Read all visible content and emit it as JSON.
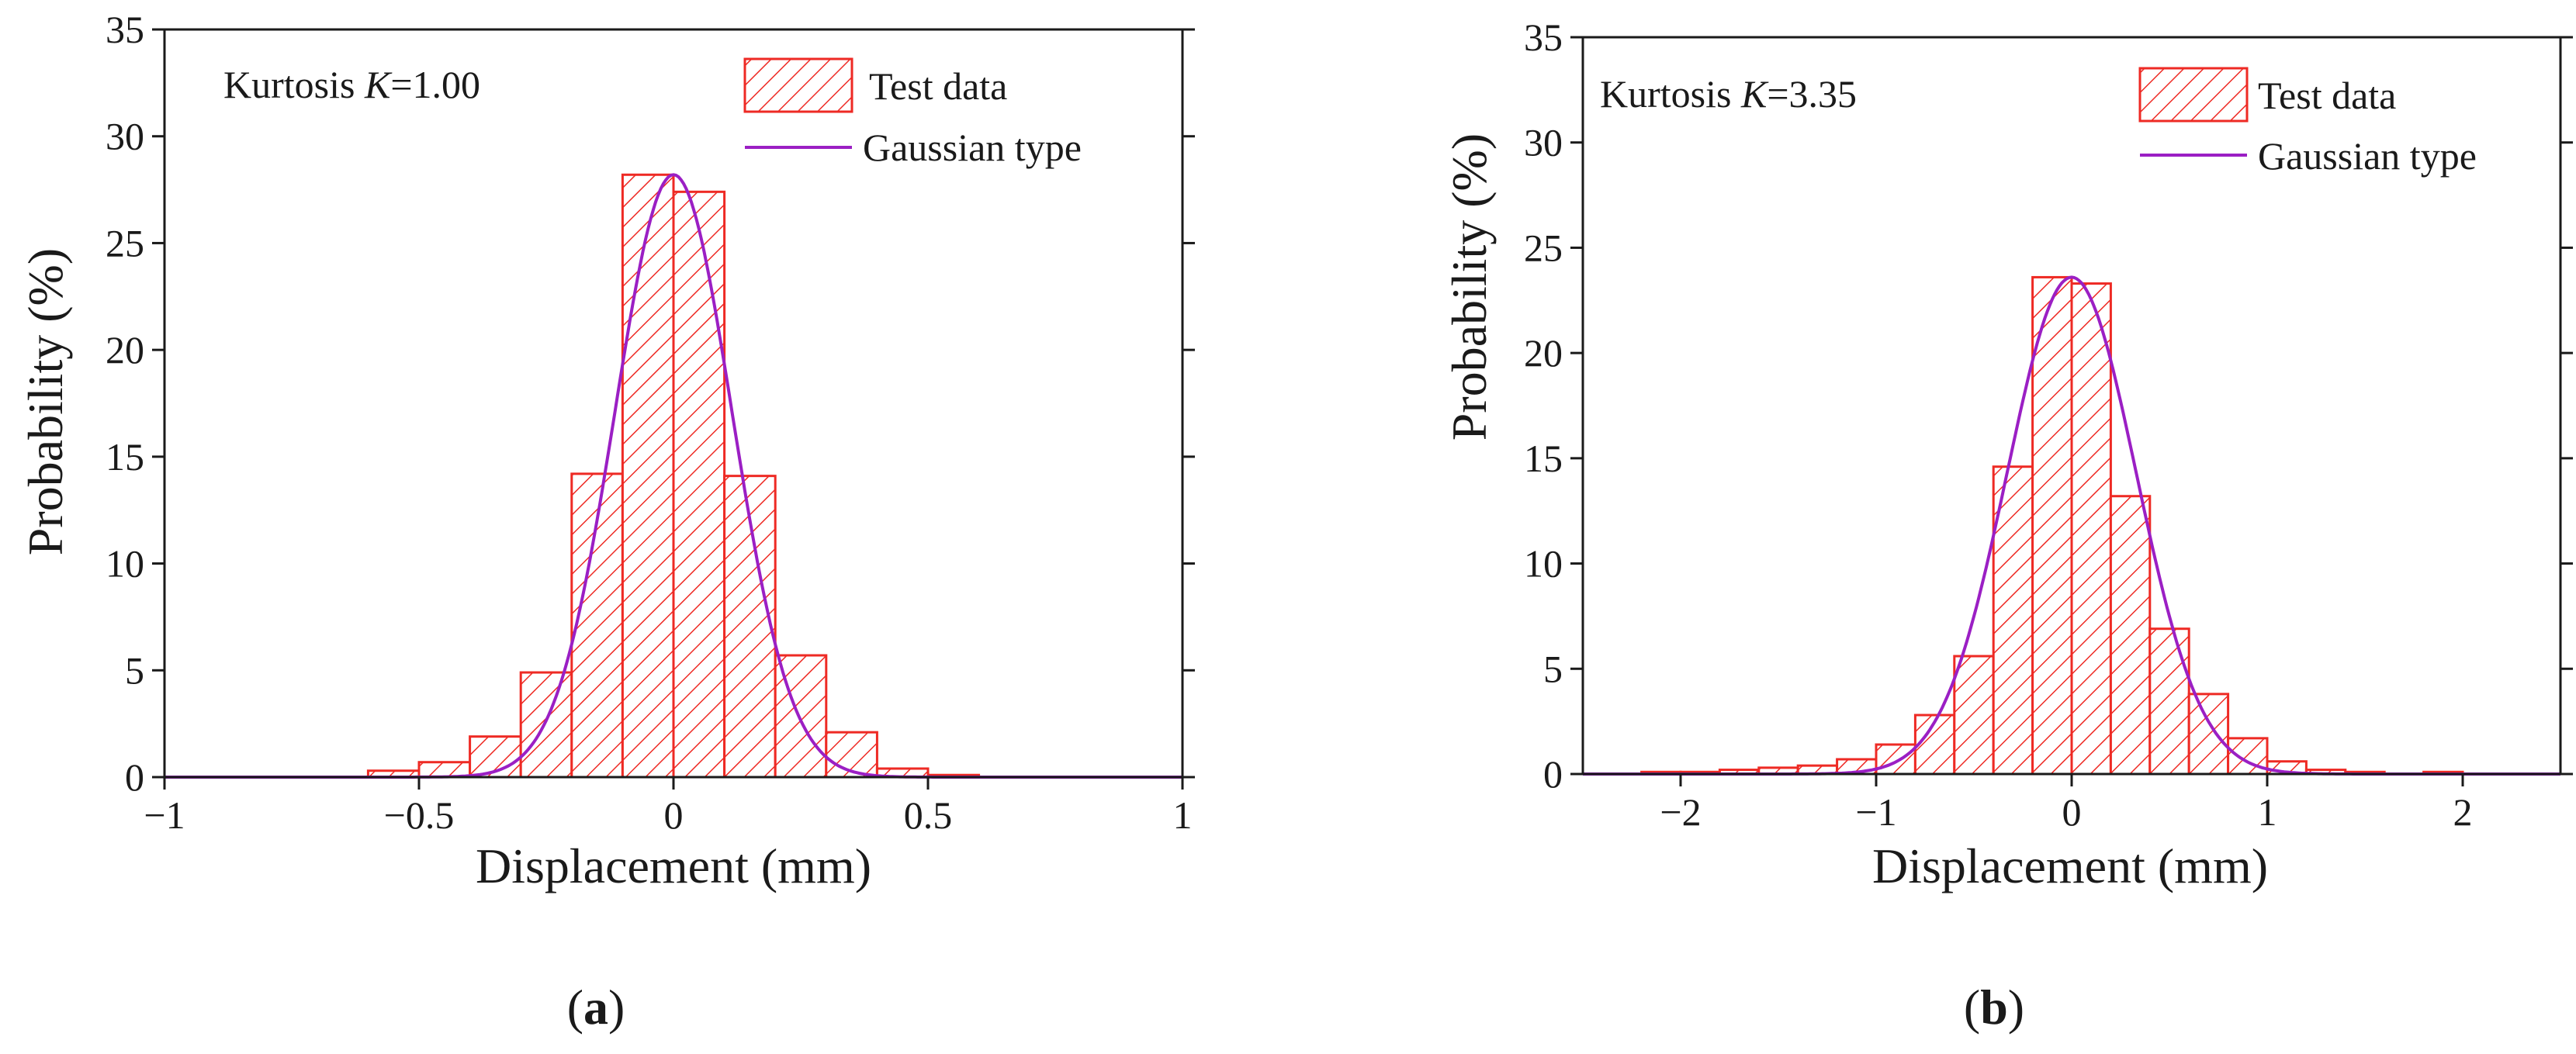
{
  "colors": {
    "bar_edge": "#ee2a24",
    "bar_hatch": "#ee2a24",
    "fit_line": "#9b1fc4",
    "axis": "#1a1a1a"
  },
  "chart_data": [
    {
      "type": "bar",
      "panel_label": "a",
      "xlabel": "Displacement (mm)",
      "ylabel": "Probability (%)",
      "xlim": [
        -1,
        1
      ],
      "ylim": [
        0,
        35
      ],
      "x_ticks": [
        -1,
        -0.5,
        0,
        0.5,
        1
      ],
      "x_tick_labels": [
        "−1",
        "−0.5",
        "0",
        "0.5",
        "1"
      ],
      "y_ticks": [
        0,
        5,
        10,
        15,
        20,
        25,
        30,
        35
      ],
      "y_tick_labels": [
        "0",
        "5",
        "10",
        "15",
        "20",
        "25",
        "30",
        "35"
      ],
      "annotation": {
        "prefix": "Kurtosis ",
        "symbol": "K",
        "value": "=1.00"
      },
      "legend": {
        "bars": "Test data",
        "line": "Gaussian type"
      },
      "bin_width": 0.1,
      "bin_centers": [
        -0.55,
        -0.45,
        -0.35,
        -0.25,
        -0.15,
        -0.05,
        0.05,
        0.15,
        0.25,
        0.35,
        0.45,
        0.55
      ],
      "values": [
        0.3,
        0.7,
        1.9,
        4.9,
        14.2,
        28.2,
        27.4,
        14.1,
        5.7,
        2.1,
        0.4,
        0.1
      ],
      "fit": {
        "peak": 28.2,
        "mean": 0.0,
        "sigma": 0.115
      }
    },
    {
      "type": "bar",
      "panel_label": "b",
      "xlabel": "Displacement (mm)",
      "ylabel": "Probability (%)",
      "xlim": [
        -2.5,
        2.5
      ],
      "ylim": [
        0,
        35
      ],
      "x_ticks": [
        -2,
        -1,
        0,
        1,
        2
      ],
      "x_tick_labels": [
        "−2",
        "−1",
        "0",
        "1",
        "2"
      ],
      "y_ticks": [
        0,
        5,
        10,
        15,
        20,
        25,
        30,
        35
      ],
      "y_tick_labels": [
        "0",
        "5",
        "10",
        "15",
        "20",
        "25",
        "30",
        "35"
      ],
      "annotation": {
        "prefix": "Kurtosis ",
        "symbol": "K",
        "value": "=3.35"
      },
      "legend": {
        "bars": "Test data",
        "line": "Gaussian type"
      },
      "bin_width": 0.2,
      "bin_centers": [
        -2.1,
        -1.9,
        -1.7,
        -1.5,
        -1.3,
        -1.1,
        -0.9,
        -0.7,
        -0.5,
        -0.3,
        -0.1,
        0.1,
        0.3,
        0.5,
        0.7,
        0.9,
        1.1,
        1.3,
        1.5,
        1.7,
        1.9
      ],
      "values": [
        0.1,
        0.1,
        0.2,
        0.3,
        0.4,
        0.7,
        1.4,
        2.8,
        5.6,
        14.6,
        23.6,
        23.3,
        13.2,
        6.9,
        3.8,
        1.7,
        0.6,
        0.2,
        0.1,
        0.0,
        0.1
      ],
      "fit": {
        "peak": 23.6,
        "mean": 0.0,
        "sigma": 0.33
      }
    }
  ]
}
